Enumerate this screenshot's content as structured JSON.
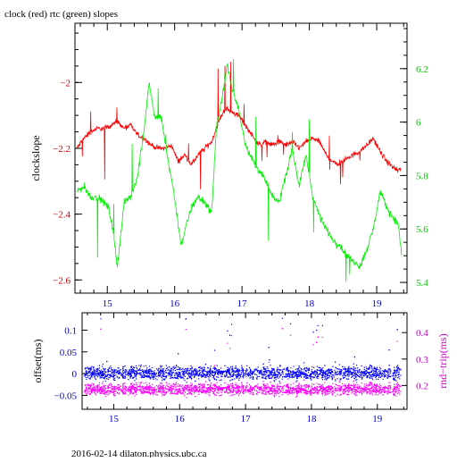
{
  "colors": {
    "clock": "#ff0000",
    "rtc": "#00ee00",
    "offset": "#0000ff",
    "round_trip": "#ff00ff",
    "frame": "#000000",
    "left_axis_top": "#cc0000",
    "right_axis_top": "#00cc00",
    "left_axis_bottom": "#0000cc",
    "right_axis_bottom": "#cc00cc"
  },
  "footer": "2016-02-14 dilaton.physics.ubc.ca",
  "chart_data": [
    {
      "type": "line",
      "title": "clock (red) rtc (green) slopes",
      "xlabel": "",
      "ylabel": "clockslope",
      "xlim": [
        14.52,
        19.45
      ],
      "ylim": [
        -2.64,
        -1.82
      ],
      "y2lim": [
        5.36,
        6.37
      ],
      "xticks": [
        15,
        16,
        17,
        18,
        19
      ],
      "yticks": [
        -2.6,
        -2.4,
        -2.2,
        -2
      ],
      "y2ticks": [
        5.4,
        5.6,
        5.8,
        6,
        6.2
      ],
      "series": [
        {
          "name": "clock",
          "axis": "left",
          "x": [
            14.55,
            14.65,
            14.75,
            14.85,
            14.95,
            15.05,
            15.15,
            15.25,
            15.35,
            15.45,
            15.55,
            15.65,
            15.75,
            15.85,
            15.95,
            16.05,
            16.15,
            16.25,
            16.35,
            16.45,
            16.55,
            16.65,
            16.75,
            16.85,
            16.95,
            17.05,
            17.15,
            17.25,
            17.35,
            17.45,
            17.55,
            17.65,
            17.75,
            17.85,
            17.95,
            18.05,
            18.15,
            18.25,
            18.35,
            18.45,
            18.55,
            18.65,
            18.75,
            18.85,
            18.95,
            19.05,
            19.15,
            19.25,
            19.32,
            19.36
          ],
          "values": [
            -2.2,
            -2.17,
            -2.15,
            -2.14,
            -2.14,
            -2.13,
            -2.12,
            -2.14,
            -2.13,
            -2.16,
            -2.17,
            -2.19,
            -2.2,
            -2.2,
            -2.19,
            -2.24,
            -2.22,
            -2.25,
            -2.22,
            -2.2,
            -2.18,
            -2.12,
            -2.08,
            -2.09,
            -2.1,
            -2.13,
            -2.16,
            -2.19,
            -2.18,
            -2.19,
            -2.18,
            -2.19,
            -2.18,
            -2.2,
            -2.18,
            -2.17,
            -2.18,
            -2.22,
            -2.24,
            -2.25,
            -2.23,
            -2.22,
            -2.21,
            -2.19,
            -2.17,
            -2.21,
            -2.24,
            -2.26,
            -2.27,
            -2.26
          ]
        },
        {
          "name": "rtc",
          "axis": "right",
          "x": [
            14.55,
            14.65,
            14.75,
            14.85,
            14.95,
            15.02,
            15.08,
            15.15,
            15.25,
            15.35,
            15.45,
            15.55,
            15.62,
            15.7,
            15.8,
            15.9,
            15.98,
            16.05,
            16.1,
            16.18,
            16.25,
            16.35,
            16.45,
            16.55,
            16.62,
            16.7,
            16.78,
            16.85,
            16.95,
            17.05,
            17.15,
            17.25,
            17.35,
            17.45,
            17.55,
            17.65,
            17.75,
            17.85,
            17.95,
            18.05,
            18.15,
            18.25,
            18.35,
            18.45,
            18.55,
            18.65,
            18.75,
            18.85,
            18.95,
            19.05,
            19.15,
            19.25,
            19.32,
            19.37
          ],
          "values": [
            5.74,
            5.76,
            5.72,
            5.72,
            5.7,
            5.68,
            5.6,
            5.46,
            5.7,
            5.72,
            5.8,
            5.98,
            6.15,
            6.02,
            6.02,
            5.86,
            5.75,
            5.62,
            5.54,
            5.62,
            5.68,
            5.72,
            5.7,
            5.66,
            5.98,
            6.08,
            6.22,
            6.12,
            6.05,
            5.92,
            5.86,
            5.82,
            5.78,
            5.72,
            5.7,
            5.8,
            5.9,
            5.76,
            5.88,
            5.72,
            5.65,
            5.6,
            5.56,
            5.54,
            5.5,
            5.48,
            5.46,
            5.52,
            5.6,
            5.74,
            5.68,
            5.64,
            5.62,
            5.5
          ]
        }
      ]
    },
    {
      "type": "scatter",
      "title": "",
      "xlabel": "",
      "ylabel": "offset(ms)",
      "y2label": "rnd−trip(ms)",
      "xlim": [
        14.52,
        19.45
      ],
      "ylim": [
        -0.082,
        0.14
      ],
      "y2lim": [
        0.11,
        0.475
      ],
      "xticks": [
        15,
        16,
        17,
        18,
        19
      ],
      "yticks": [
        -0.05,
        0,
        0.05,
        0.1
      ],
      "ytick_labels": [
        "−0.05",
        "0",
        "0.05",
        "0.1"
      ],
      "y2ticks": [
        0.2,
        0.3,
        0.4
      ],
      "series": [
        {
          "name": "offset",
          "axis": "left",
          "x_range": [
            14.55,
            19.35
          ],
          "center": 0.002,
          "band": [
            -0.02,
            0.025
          ],
          "outliers_max": 0.13
        },
        {
          "name": "rnd-trip",
          "axis": "right",
          "x_range": [
            14.55,
            19.35
          ],
          "center": 0.185,
          "band": [
            0.155,
            0.22
          ],
          "outliers_max": 0.42
        }
      ]
    }
  ]
}
